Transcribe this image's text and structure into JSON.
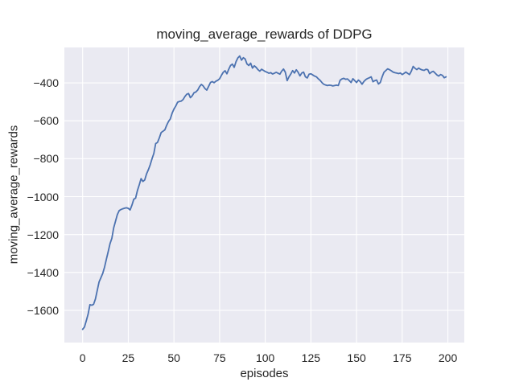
{
  "colors": {
    "line": "#4c72b0",
    "plot_background": "#eaeaf2",
    "grid": "#ffffff",
    "text": "#262626",
    "figure_background": "#ffffff"
  },
  "chart_data": {
    "type": "line",
    "title": "moving_average_rewards of DDPG",
    "xlabel": "episodes",
    "ylabel": "moving_average_rewards",
    "x_ticks": [
      0,
      25,
      50,
      75,
      100,
      125,
      150,
      175,
      200
    ],
    "x_tick_labels": [
      "0",
      "25",
      "50",
      "75",
      "100",
      "125",
      "150",
      "175",
      "200"
    ],
    "y_ticks": [
      -400,
      -600,
      -800,
      -1000,
      -1200,
      -1400,
      -1600
    ],
    "y_tick_labels": [
      "−400",
      "−600",
      "−800",
      "−1000",
      "−1200",
      "−1400",
      "−1600"
    ],
    "xlim": [
      -10,
      209
    ],
    "ylim": [
      -1770,
      -213
    ],
    "grid": true,
    "legend_position": "none",
    "series": [
      {
        "name": "moving_average_rewards",
        "x_start": 0,
        "x_step": 1,
        "values": [
          -1700,
          -1688,
          -1655,
          -1620,
          -1570,
          -1573,
          -1568,
          -1540,
          -1495,
          -1450,
          -1428,
          -1405,
          -1372,
          -1330,
          -1290,
          -1248,
          -1220,
          -1165,
          -1130,
          -1095,
          -1074,
          -1068,
          -1064,
          -1061,
          -1059,
          -1062,
          -1070,
          -1045,
          -1014,
          -1008,
          -968,
          -938,
          -905,
          -920,
          -912,
          -880,
          -858,
          -832,
          -800,
          -772,
          -720,
          -714,
          -690,
          -662,
          -655,
          -648,
          -624,
          -604,
          -590,
          -560,
          -538,
          -522,
          -502,
          -498,
          -496,
          -488,
          -472,
          -460,
          -456,
          -478,
          -468,
          -452,
          -448,
          -438,
          -420,
          -408,
          -416,
          -430,
          -438,
          -418,
          -398,
          -393,
          -399,
          -391,
          -386,
          -378,
          -360,
          -344,
          -336,
          -352,
          -328,
          -308,
          -301,
          -318,
          -288,
          -268,
          -258,
          -280,
          -267,
          -274,
          -300,
          -308,
          -296,
          -322,
          -310,
          -318,
          -330,
          -338,
          -328,
          -334,
          -340,
          -344,
          -349,
          -346,
          -353,
          -349,
          -344,
          -349,
          -354,
          -338,
          -327,
          -344,
          -388,
          -368,
          -353,
          -335,
          -348,
          -331,
          -344,
          -363,
          -348,
          -343,
          -368,
          -374,
          -354,
          -352,
          -358,
          -364,
          -368,
          -378,
          -386,
          -398,
          -407,
          -411,
          -414,
          -412,
          -413,
          -416,
          -414,
          -412,
          -414,
          -386,
          -379,
          -376,
          -381,
          -379,
          -388,
          -398,
          -378,
          -388,
          -398,
          -385,
          -393,
          -407,
          -393,
          -383,
          -377,
          -373,
          -368,
          -394,
          -388,
          -385,
          -406,
          -398,
          -368,
          -344,
          -335,
          -326,
          -330,
          -336,
          -343,
          -346,
          -348,
          -351,
          -348,
          -356,
          -350,
          -343,
          -350,
          -356,
          -338,
          -313,
          -323,
          -330,
          -322,
          -328,
          -332,
          -334,
          -328,
          -330,
          -351,
          -343,
          -339,
          -348,
          -358,
          -364,
          -356,
          -360,
          -373,
          -368
        ]
      }
    ]
  }
}
